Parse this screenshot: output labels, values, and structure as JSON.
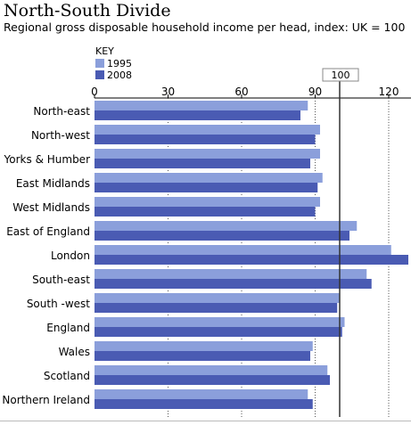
{
  "title": "North-South Divide",
  "subtitle": "Regional gross disposable household income per head, index: UK = 100",
  "key": {
    "title": "KEY",
    "items": [
      {
        "label": "1995",
        "color": "#8b9fdb"
      },
      {
        "label": "2008",
        "color": "#4a5bb3"
      }
    ]
  },
  "chart_data": {
    "type": "bar",
    "orientation": "horizontal",
    "title": "North-South Divide",
    "subtitle": "Regional gross disposable household income per head, index: UK = 100",
    "categories": [
      "North-east",
      "North-west",
      "Yorks & Humber",
      "East Midlands",
      "West Midlands",
      "East of England",
      "London",
      "South-east",
      "South -west",
      "England",
      "Wales",
      "Scotland",
      "Northern Ireland"
    ],
    "series": [
      {
        "name": "1995",
        "color": "#8b9fdb",
        "values": [
          87,
          92,
          92,
          93,
          92,
          107,
          121,
          111,
          100,
          102,
          89,
          95,
          87
        ]
      },
      {
        "name": "2008",
        "color": "#4a5bb3",
        "values": [
          84,
          90,
          88,
          91,
          90,
          104,
          128,
          113,
          99,
          101,
          88,
          96,
          89
        ]
      }
    ],
    "xlim": [
      0,
      128
    ],
    "xticks": [
      0,
      30,
      60,
      90,
      120
    ],
    "reference_line": {
      "value": 100,
      "label": "100"
    },
    "grid": true,
    "legend_position": "top-left"
  }
}
